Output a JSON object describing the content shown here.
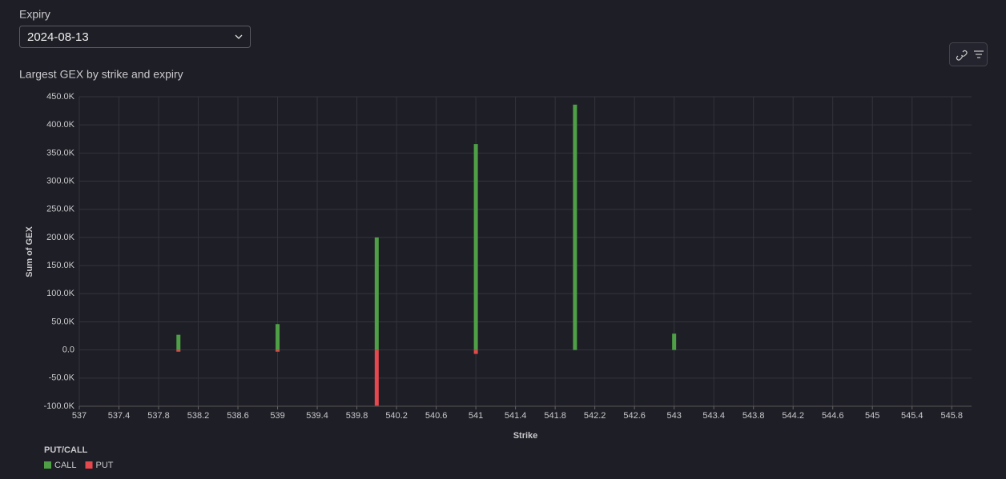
{
  "expiry": {
    "label": "Expiry",
    "value": "2024-08-13"
  },
  "chart_data": {
    "type": "bar",
    "title": "Largest GEX by strike and expiry",
    "x_label": "Strike",
    "y_label": "Sum of GEX",
    "legend_title": "PUT/CALL",
    "x": [
      538,
      539,
      540,
      541,
      542,
      543
    ],
    "series": [
      {
        "name": "CALL",
        "color": "#4e9f46",
        "values": [
          27000,
          46000,
          200000,
          366000,
          436000,
          29000
        ]
      },
      {
        "name": "PUT",
        "color": "#e5484d",
        "values": [
          -3000,
          -3000,
          -99000,
          -7000,
          null,
          null
        ]
      }
    ],
    "xlim": [
      537,
      546
    ],
    "xticks": [
      537,
      537.4,
      537.8,
      538.2,
      538.6,
      539,
      539.4,
      539.8,
      540.2,
      540.6,
      541,
      541.4,
      541.8,
      542.2,
      542.6,
      543,
      543.4,
      543.8,
      544.2,
      544.6,
      545,
      545.4,
      545.8
    ],
    "ylim": [
      -100000,
      450000
    ],
    "yticks": [
      {
        "value": -100000,
        "label": "-100.0K"
      },
      {
        "value": -50000,
        "label": "-50.0K"
      },
      {
        "value": 0,
        "label": "0.0"
      },
      {
        "value": 50000,
        "label": "50.0K"
      },
      {
        "value": 100000,
        "label": "100.0K"
      },
      {
        "value": 150000,
        "label": "150.0K"
      },
      {
        "value": 200000,
        "label": "200.0K"
      },
      {
        "value": 250000,
        "label": "250.0K"
      },
      {
        "value": 300000,
        "label": "300.0K"
      },
      {
        "value": 350000,
        "label": "350.0K"
      },
      {
        "value": 400000,
        "label": "400.0K"
      },
      {
        "value": 450000,
        "label": "450.0K"
      }
    ],
    "grid": true
  }
}
